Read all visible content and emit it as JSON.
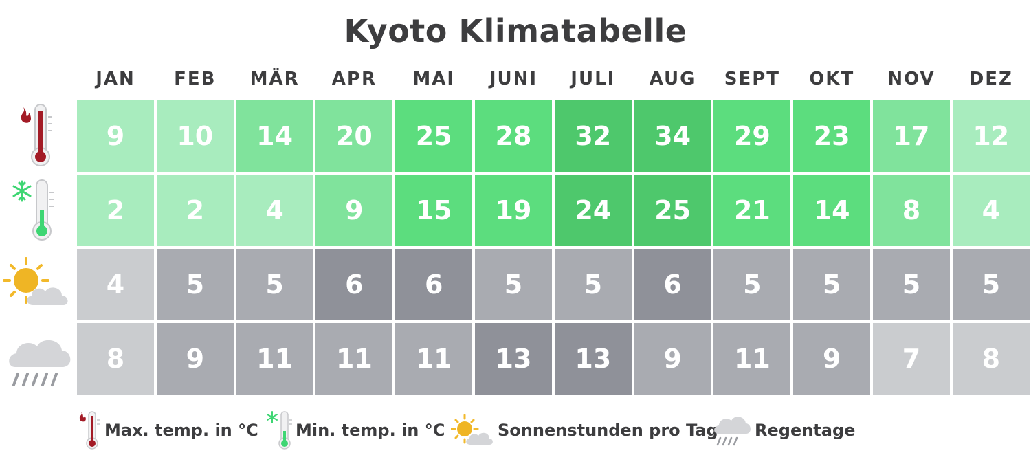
{
  "title": "Kyoto Klimatabelle",
  "colors": {
    "temp_scale": [
      "#a8ecbe",
      "#80e39c",
      "#5cdd7e",
      "#4ec86c"
    ],
    "gray_scale": [
      "#cacccf",
      "#a9abb1",
      "#8f9199"
    ],
    "text": "#3d3d3f"
  },
  "icons": {
    "max_temp": "thermometer-hot-icon",
    "min_temp": "thermometer-cold-icon",
    "sun": "sun-cloud-icon",
    "rain": "rain-cloud-icon"
  },
  "legend": [
    {
      "label": "Max. temp. in °C",
      "icon": "thermometer-hot-icon"
    },
    {
      "label": "Min. temp. in °C",
      "icon": "thermometer-cold-icon"
    },
    {
      "label": "Sonnenstunden pro Tag",
      "icon": "sun-cloud-icon"
    },
    {
      "label": "Regentage",
      "icon": "rain-cloud-icon"
    }
  ],
  "chart_data": {
    "type": "table",
    "title": "Kyoto Klimatabelle",
    "categories": [
      "JAN",
      "FEB",
      "MÄR",
      "APR",
      "MAI",
      "JUNI",
      "JULI",
      "AUG",
      "SEPT",
      "OKT",
      "NOV",
      "DEZ"
    ],
    "series": [
      {
        "name": "Max. temp. in °C",
        "values": [
          9,
          10,
          14,
          20,
          25,
          28,
          32,
          34,
          29,
          23,
          17,
          12
        ]
      },
      {
        "name": "Min. temp. in °C",
        "values": [
          2,
          2,
          4,
          9,
          15,
          19,
          24,
          25,
          21,
          14,
          8,
          4
        ]
      },
      {
        "name": "Sonnenstunden pro Tag",
        "values": [
          4,
          5,
          5,
          6,
          6,
          5,
          5,
          6,
          5,
          5,
          5,
          5
        ]
      },
      {
        "name": "Regentage",
        "values": [
          8,
          9,
          11,
          11,
          11,
          13,
          13,
          9,
          11,
          9,
          7,
          8
        ]
      }
    ]
  }
}
